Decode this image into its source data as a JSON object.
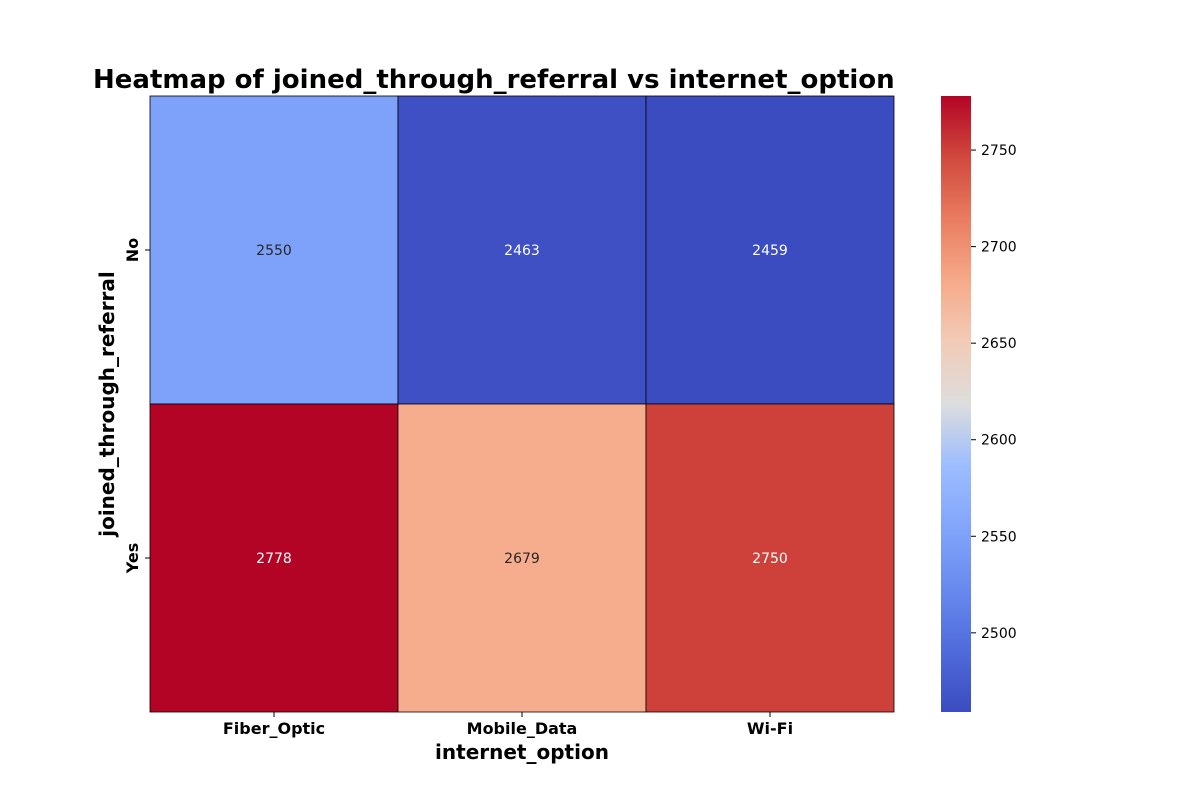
{
  "chart_data": {
    "type": "heatmap",
    "title": "Heatmap of joined_through_referral vs internet_option",
    "xlabel": "internet_option",
    "ylabel": "joined_through_referral",
    "x_categories": [
      "Fiber_Optic",
      "Mobile_Data",
      "Wi-Fi"
    ],
    "y_categories": [
      "No",
      "Yes"
    ],
    "values": [
      [
        2550,
        2463,
        2459
      ],
      [
        2778,
        2679,
        2750
      ]
    ],
    "colormap": "coolwarm",
    "colorbar": {
      "range": [
        2459,
        2778
      ],
      "ticks": [
        2500,
        2550,
        2600,
        2650,
        2700,
        2750
      ]
    },
    "cell_borders": true,
    "grid": false
  }
}
